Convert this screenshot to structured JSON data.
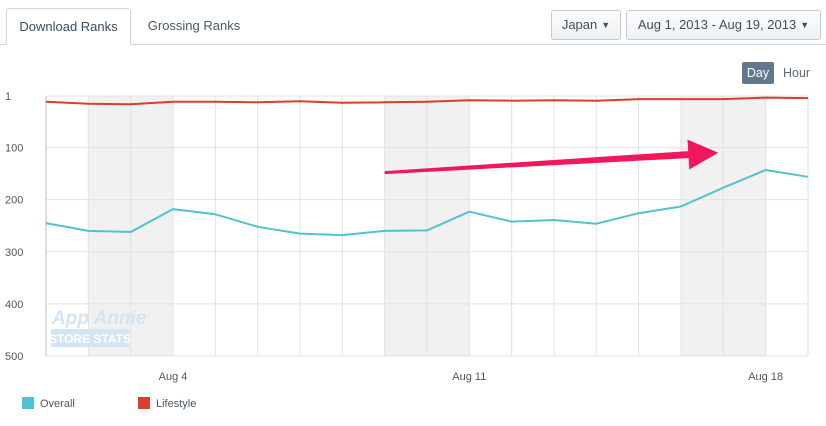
{
  "tabs": [
    {
      "label": "Download Ranks",
      "active": true
    },
    {
      "label": "Grossing Ranks",
      "active": false
    }
  ],
  "filters": {
    "country": "Japan",
    "date_range": "Aug 1, 2013 - Aug 19, 2013"
  },
  "granularity": {
    "day": "Day",
    "hour": "Hour",
    "selected": "Day"
  },
  "watermark": {
    "line1": "App Annie",
    "line2": "STORE STATS"
  },
  "colors": {
    "overall": "#4fc3cf",
    "lifestyle": "#d7402a",
    "arrow": "#f0185a",
    "weekend": "#f1f1f1",
    "grid": "#e2e2e2"
  },
  "chart_data": {
    "type": "line",
    "x": [
      "Aug 1",
      "Aug 2",
      "Aug 3",
      "Aug 4",
      "Aug 5",
      "Aug 6",
      "Aug 7",
      "Aug 8",
      "Aug 9",
      "Aug 10",
      "Aug 11",
      "Aug 12",
      "Aug 13",
      "Aug 14",
      "Aug 15",
      "Aug 16",
      "Aug 17",
      "Aug 18",
      "Aug 19"
    ],
    "x_tick_labels": [
      {
        "index": 3,
        "label": "Aug 4"
      },
      {
        "index": 10,
        "label": "Aug 11"
      },
      {
        "index": 17,
        "label": "Aug 18"
      }
    ],
    "y_ticks": [
      1,
      100,
      200,
      300,
      400,
      500
    ],
    "ylim": [
      1,
      500
    ],
    "y_inverted": true,
    "grid": true,
    "weekend_bands": [
      [
        1,
        3
      ],
      [
        8,
        10
      ],
      [
        15,
        17
      ]
    ],
    "series": [
      {
        "name": "Overall",
        "values": [
          245,
          260,
          262,
          218,
          228,
          252,
          265,
          268,
          260,
          259,
          223,
          242,
          239,
          246,
          226,
          213,
          177,
          143,
          156
        ]
      },
      {
        "name": "Lifestyle",
        "values": [
          12,
          16,
          17,
          12,
          12,
          13,
          11,
          14,
          13,
          12,
          9,
          10,
          9,
          10,
          7,
          7,
          7,
          4,
          5
        ]
      }
    ],
    "annotation": {
      "type": "arrow",
      "from": {
        "x": "Aug 9",
        "y": 148
      },
      "to": {
        "x": "Aug 17",
        "y": 110
      }
    },
    "legend_position": "bottom-left"
  }
}
